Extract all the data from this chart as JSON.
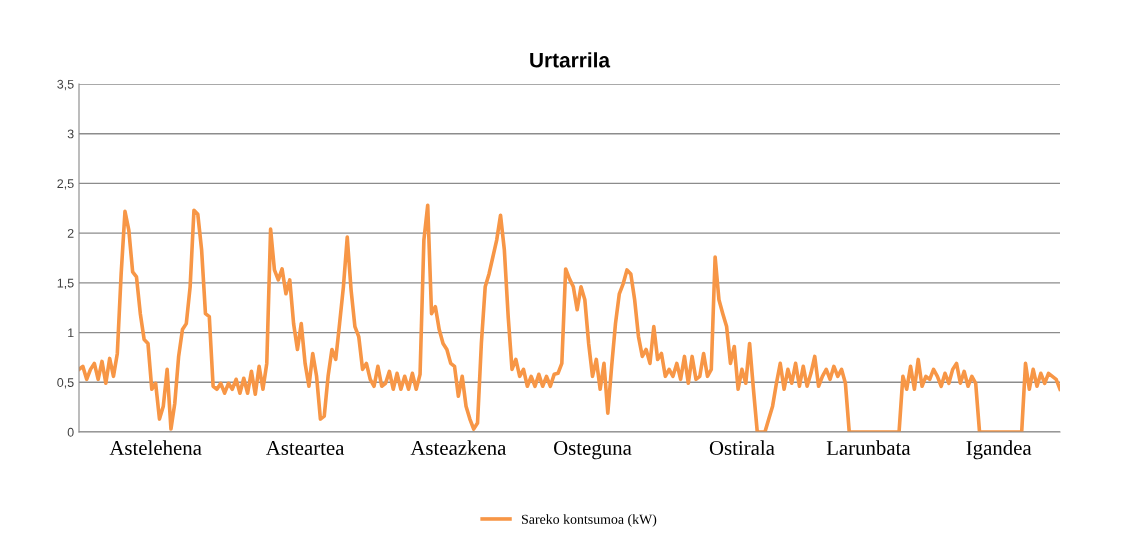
{
  "chart_data": {
    "type": "line",
    "title": "Urtarrila",
    "categories": [
      null,
      null,
      null,
      null,
      null,
      null,
      null,
      null,
      null,
      null,
      null,
      null,
      null,
      null,
      null,
      null,
      null,
      null,
      null,
      null,
      "Astelehena",
      null,
      null,
      null,
      null,
      null,
      null,
      null,
      null,
      null,
      null,
      null,
      null,
      null,
      null,
      null,
      null,
      null,
      null,
      null,
      null,
      null,
      null,
      null,
      null,
      null,
      null,
      null,
      null,
      null,
      null,
      null,
      null,
      null,
      null,
      null,
      null,
      null,
      null,
      "Asteartea",
      null,
      null,
      null,
      null,
      null,
      null,
      null,
      null,
      null,
      null,
      null,
      null,
      null,
      null,
      null,
      null,
      null,
      null,
      null,
      null,
      null,
      null,
      null,
      null,
      null,
      null,
      null,
      null,
      null,
      null,
      null,
      null,
      null,
      null,
      null,
      null,
      null,
      null,
      null,
      "Asteazkena",
      null,
      null,
      null,
      null,
      null,
      null,
      null,
      null,
      null,
      null,
      null,
      null,
      null,
      null,
      null,
      null,
      null,
      null,
      null,
      null,
      null,
      null,
      null,
      null,
      null,
      null,
      null,
      null,
      null,
      null,
      null,
      null,
      null,
      null,
      "Osteguna",
      null,
      null,
      null,
      null,
      null,
      null,
      null,
      null,
      null,
      null,
      null,
      null,
      null,
      null,
      null,
      null,
      null,
      null,
      null,
      null,
      null,
      null,
      null,
      null,
      null,
      null,
      null,
      null,
      null,
      null,
      null,
      null,
      null,
      null,
      null,
      null,
      null,
      null,
      "Ostirala",
      null,
      null,
      null,
      null,
      null,
      null,
      null,
      null,
      null,
      null,
      null,
      null,
      null,
      null,
      null,
      null,
      null,
      null,
      null,
      null,
      null,
      null,
      null,
      null,
      null,
      null,
      null,
      null,
      null,
      null,
      null,
      null,
      "Larunbata",
      null,
      null,
      null,
      null,
      null,
      null,
      null,
      null,
      null,
      null,
      null,
      null,
      null,
      null,
      null,
      null,
      null,
      null,
      null,
      null,
      null,
      null,
      null,
      null,
      null,
      null,
      null,
      null,
      null,
      null,
      null,
      null,
      null,
      "Igandea",
      null,
      null,
      null,
      null,
      null,
      null,
      null,
      null,
      null,
      null,
      null,
      null,
      null,
      null,
      null,
      null
    ],
    "series": [
      {
        "name": "Sareko kontsumoa (kW)",
        "color": "#f79646",
        "values": [
          0.63,
          0.66,
          0.53,
          0.63,
          0.69,
          0.53,
          0.71,
          0.49,
          0.74,
          0.56,
          0.79,
          1.59,
          2.22,
          2.03,
          1.61,
          1.56,
          1.19,
          0.93,
          0.89,
          0.43,
          0.49,
          0.13,
          0.26,
          0.63,
          0.03,
          0.29,
          0.76,
          1.03,
          1.09,
          1.46,
          2.23,
          2.19,
          1.83,
          1.19,
          1.16,
          0.46,
          0.43,
          0.49,
          0.39,
          0.49,
          0.43,
          0.53,
          0.39,
          0.54,
          0.39,
          0.61,
          0.38,
          0.66,
          0.43,
          0.69,
          2.04,
          1.63,
          1.53,
          1.64,
          1.39,
          1.53,
          1.09,
          0.83,
          1.09,
          0.69,
          0.46,
          0.79,
          0.56,
          0.13,
          0.16,
          0.56,
          0.83,
          0.73,
          1.09,
          1.46,
          1.96,
          1.43,
          1.06,
          0.96,
          0.63,
          0.69,
          0.53,
          0.46,
          0.66,
          0.46,
          0.49,
          0.61,
          0.43,
          0.59,
          0.43,
          0.56,
          0.43,
          0.59,
          0.43,
          0.58,
          1.93,
          2.28,
          1.19,
          1.26,
          1.03,
          0.89,
          0.83,
          0.69,
          0.66,
          0.36,
          0.56,
          0.26,
          0.13,
          0.03,
          0.09,
          0.89,
          1.46,
          1.59,
          1.76,
          1.93,
          2.18,
          1.83,
          1.16,
          0.63,
          0.73,
          0.56,
          0.63,
          0.46,
          0.56,
          0.46,
          0.58,
          0.46,
          0.56,
          0.46,
          0.58,
          0.59,
          0.69,
          1.64,
          1.54,
          1.46,
          1.23,
          1.46,
          1.33,
          0.89,
          0.56,
          0.73,
          0.43,
          0.69,
          0.19,
          0.66,
          1.09,
          1.39,
          1.49,
          1.63,
          1.59,
          1.33,
          0.96,
          0.76,
          0.83,
          0.69,
          1.06,
          0.73,
          0.79,
          0.56,
          0.63,
          0.56,
          0.69,
          0.53,
          0.76,
          0.49,
          0.76,
          0.53,
          0.56,
          0.79,
          0.56,
          0.63,
          1.76,
          1.33,
          1.19,
          1.06,
          0.69,
          0.86,
          0.43,
          0.63,
          0.49,
          0.89,
          0.43,
          0.0,
          0.0,
          0.0,
          0.13,
          0.26,
          0.49,
          0.69,
          0.43,
          0.63,
          0.49,
          0.69,
          0.46,
          0.66,
          0.46,
          0.59,
          0.76,
          0.46,
          0.56,
          0.63,
          0.53,
          0.66,
          0.56,
          0.63,
          0.49,
          0.0,
          0.0,
          0.0,
          0.0,
          0.0,
          0.0,
          0.0,
          0.0,
          0.0,
          0.0,
          0.0,
          0.0,
          0.0,
          0.0,
          0.56,
          0.43,
          0.66,
          0.43,
          0.73,
          0.46,
          0.56,
          0.53,
          0.63,
          0.56,
          0.46,
          0.59,
          0.49,
          0.63,
          0.69,
          0.49,
          0.61,
          0.46,
          0.56,
          0.49,
          0.0,
          0.0,
          0.0,
          0.0,
          0.0,
          0.0,
          0.0,
          0.0,
          0.0,
          0.0,
          0.0,
          0.0,
          0.69,
          0.43,
          0.63,
          0.46,
          0.59,
          0.49,
          0.59,
          0.56,
          0.53,
          0.43
        ]
      }
    ],
    "ylim": [
      0,
      3.5
    ],
    "yticks": [
      0,
      {
        "value": 0.5,
        "label": "0,5"
      },
      1,
      {
        "value": 1.5,
        "label": "1,5"
      },
      2,
      {
        "value": 2.5,
        "label": "2,5"
      },
      3,
      {
        "value": 3.5,
        "label": "3,5"
      }
    ],
    "grid": "y",
    "legend": "bottom",
    "marker": "none",
    "line_style": "solid"
  }
}
